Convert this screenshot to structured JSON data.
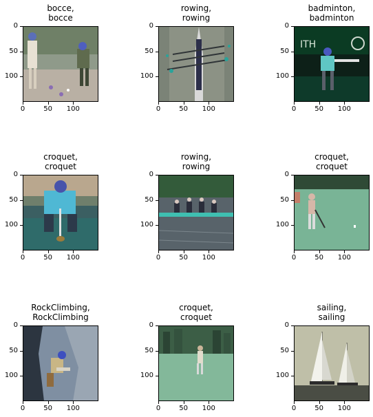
{
  "chart_data": {
    "type": "image_grid",
    "axis": {
      "xticks": [
        "0",
        "50",
        "100"
      ],
      "yticks": [
        "0",
        "50",
        "100"
      ],
      "xlim": [
        0,
        150
      ],
      "ylim": [
        150,
        0
      ]
    },
    "panels": [
      {
        "title": "bocce,\nbocce",
        "true_label": "bocce",
        "predicted_label": "bocce"
      },
      {
        "title": "rowing,\nrowing",
        "true_label": "rowing",
        "predicted_label": "rowing"
      },
      {
        "title": "badminton,\nbadminton",
        "true_label": "badminton",
        "predicted_label": "badminton"
      },
      {
        "title": "croquet,\ncroquet",
        "true_label": "croquet",
        "predicted_label": "croquet"
      },
      {
        "title": "rowing,\nrowing",
        "true_label": "rowing",
        "predicted_label": "rowing"
      },
      {
        "title": "croquet,\ncroquet",
        "true_label": "croquet",
        "predicted_label": "croquet"
      },
      {
        "title": "RockClimbing,\nRockClimbing",
        "true_label": "RockClimbing",
        "predicted_label": "RockClimbing"
      },
      {
        "title": "croquet,\ncroquet",
        "true_label": "croquet",
        "predicted_label": "croquet"
      },
      {
        "title": "sailing,\nsailing",
        "true_label": "sailing",
        "predicted_label": "sailing"
      }
    ]
  },
  "colors": {
    "tick": "#000000",
    "background": "#ffffff"
  }
}
